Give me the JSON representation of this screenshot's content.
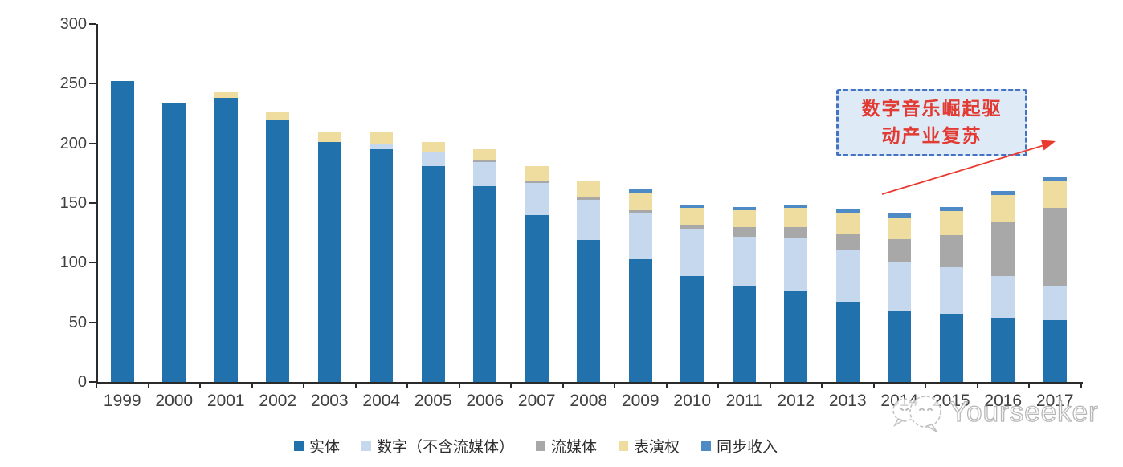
{
  "chart_data": {
    "type": "bar",
    "subtype": "stacked",
    "title": "",
    "xlabel": "",
    "ylabel": "",
    "x": [
      "1999",
      "2000",
      "2001",
      "2002",
      "2003",
      "2004",
      "2005",
      "2006",
      "2007",
      "2008",
      "2009",
      "2010",
      "2011",
      "2012",
      "2013",
      "2014",
      "2015",
      "2016",
      "2017"
    ],
    "series": [
      {
        "name": "实体",
        "color": "#2171AD",
        "values": [
          252,
          234,
          238,
          220,
          201,
          195,
          181,
          164,
          140,
          119,
          103,
          89,
          81,
          76,
          67,
          60,
          57,
          54,
          52
        ]
      },
      {
        "name": "数字（不含流媒体）",
        "color": "#C5D8ED",
        "values": [
          0,
          0,
          0,
          0,
          0,
          5,
          12,
          20,
          27,
          34,
          38,
          39,
          41,
          45,
          43,
          41,
          39,
          35,
          29
        ]
      },
      {
        "name": "流媒体",
        "color": "#A8A8A8",
        "values": [
          0,
          0,
          0,
          0,
          0,
          0,
          0,
          2,
          2,
          2,
          3,
          3,
          8,
          9,
          14,
          19,
          27,
          45,
          65
        ]
      },
      {
        "name": "表演权",
        "color": "#EFDD9F",
        "values": [
          0,
          0,
          5,
          6,
          9,
          9,
          8,
          9,
          12,
          14,
          15,
          15,
          14,
          16,
          18,
          17,
          20,
          23,
          23
        ]
      },
      {
        "name": "同步收入",
        "color": "#4E8AC5",
        "values": [
          0,
          0,
          0,
          0,
          0,
          0,
          0,
          0,
          0,
          0,
          3,
          3,
          3,
          3,
          3,
          4,
          4,
          3,
          3
        ]
      }
    ],
    "ylim": [
      0,
      300
    ],
    "yticks": [
      0,
      50,
      100,
      150,
      200,
      250,
      300
    ],
    "grid": false,
    "legend_position": "bottom"
  },
  "annotation": {
    "text": "数字音乐崛起驱动产业复苏",
    "line1": "数字音乐崛起驱",
    "line2": "动产业复苏",
    "border_color": "#4472C4",
    "fill_color": "#DEEAF6",
    "text_color": "#E23B33",
    "arrow_color": "#E8392E"
  },
  "watermark": {
    "text": "Yourseeker",
    "color": "#b3b3b3",
    "logo": "chat-bubbles-mascot-icon"
  }
}
